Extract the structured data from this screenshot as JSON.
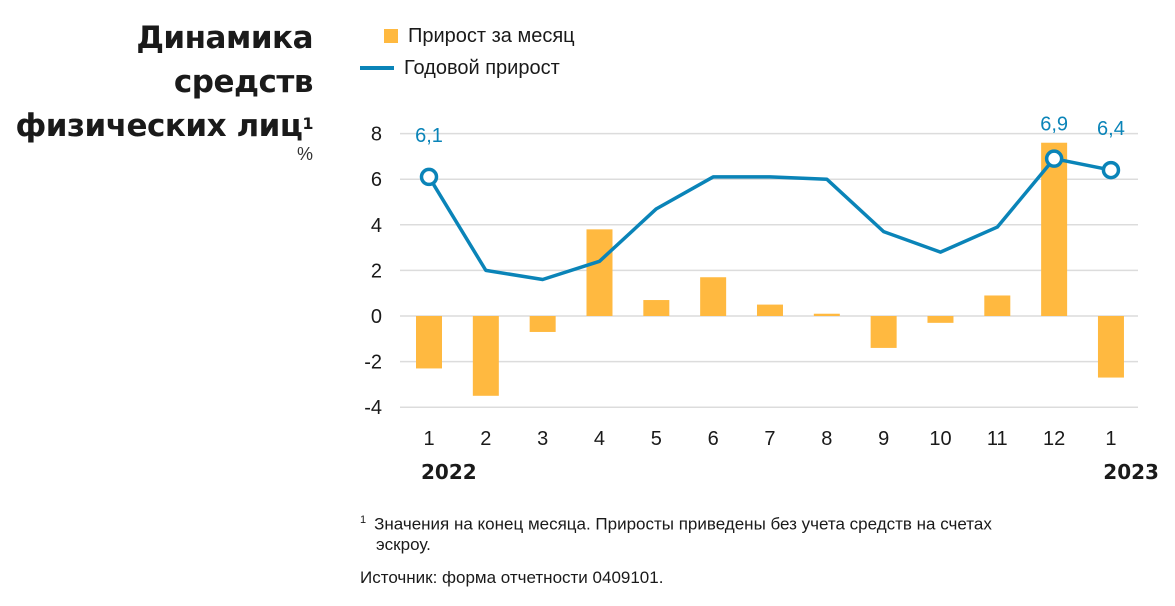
{
  "title_lines": [
    "Динамика",
    "средств",
    "физических лиц"
  ],
  "title_footnote_mark": "1",
  "unit": "%",
  "colors": {
    "bar": "#FFB940",
    "line": "#0A84B8"
  },
  "chart_data": {
    "type": "bar+line",
    "categories": [
      "1",
      "2",
      "3",
      "4",
      "5",
      "6",
      "7",
      "8",
      "9",
      "10",
      "11",
      "12",
      "1"
    ],
    "year_labels": [
      {
        "label": "2022",
        "category_index": 0
      },
      {
        "label": "2023",
        "category_index": 12
      }
    ],
    "series": [
      {
        "name": "Прирост за месяц",
        "type": "bar",
        "values": [
          -2.3,
          -3.5,
          -0.7,
          3.8,
          0.7,
          1.7,
          0.5,
          0.1,
          -1.4,
          -0.3,
          0.9,
          7.6,
          -2.7
        ]
      },
      {
        "name": "Годовой прирост",
        "type": "line",
        "values": [
          6.1,
          2.0,
          1.6,
          2.4,
          4.7,
          6.1,
          6.1,
          6.0,
          3.7,
          2.8,
          3.9,
          6.9,
          6.4
        ],
        "data_labels": [
          {
            "index": 0,
            "text": "6,1"
          },
          {
            "index": 11,
            "text": "6,9"
          },
          {
            "index": 12,
            "text": "6,4"
          }
        ]
      }
    ],
    "ylim": [
      -4,
      8
    ],
    "yticks": [
      "-4",
      "-2",
      "0",
      "2",
      "4",
      "6",
      "8"
    ],
    "grid": true,
    "legend": "top"
  },
  "footnotes": {
    "mark": "1",
    "note": "Значения на конец месяца. Приросты приведены без учета средств на счетах",
    "note_cont": "эскроу.",
    "source": "Источник: форма отчетности 0409101."
  }
}
